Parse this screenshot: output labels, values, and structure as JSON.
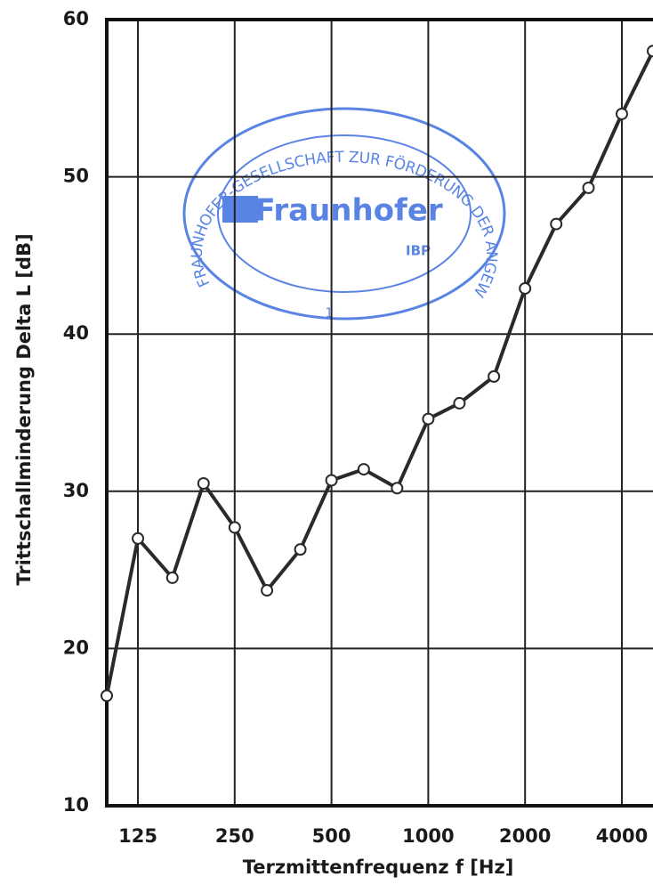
{
  "chart_data": {
    "type": "line",
    "x_label": "Terzmittenfrequenz f [Hz]",
    "y_label": "Trittschallminderung Delta L [dB]",
    "x": [
      100,
      125,
      160,
      200,
      250,
      315,
      400,
      500,
      630,
      800,
      1000,
      1250,
      1600,
      2000,
      2500,
      3150,
      4000,
      5000
    ],
    "series": [
      {
        "color": "#2a2a2a",
        "values": [
          17,
          27,
          24.5,
          30.5,
          27.7,
          23.7,
          26.3,
          30.7,
          31.4,
          30.2,
          34.6,
          35.6,
          37.3,
          42.9,
          47,
          49.3,
          54,
          58
        ]
      }
    ],
    "xlog": true,
    "xlim": [
      100,
      5000
    ],
    "xticks": [
      125,
      250,
      500,
      1000,
      2000,
      4000
    ],
    "ylim": [
      10,
      60
    ],
    "yticks": [
      10,
      20,
      30,
      40,
      50,
      60
    ],
    "grid": true,
    "stamp": {
      "ring": "FRAUNHOFER-GESELLSCHAFT ZUR FÖRDERUNG DER ANGEWANDTEN FORSCHUNG E.V.",
      "name": "Fraunhofer",
      "unit": "IBP",
      "number": "1",
      "color": "#3d6fe0"
    }
  }
}
